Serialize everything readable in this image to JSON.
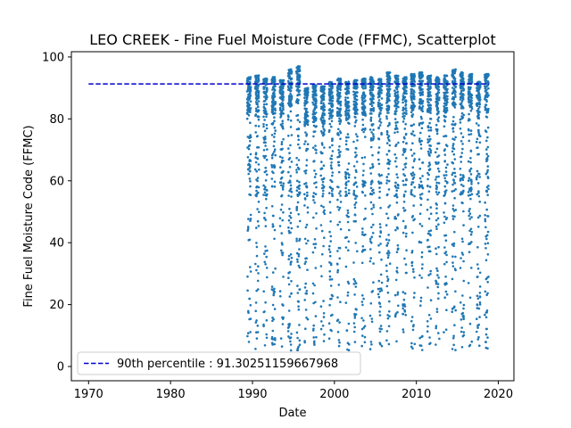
{
  "chart_data": {
    "type": "scatter",
    "title": "LEO CREEK - Fine Fuel Moisture Code (FFMC), Scatterplot",
    "xlabel": "Date",
    "ylabel": "Fine Fuel Moisture Code (FFMC)",
    "xlim": [
      1967.9,
      2021.9
    ],
    "ylim": [
      -4.6,
      101.7
    ],
    "x_ticks": [
      1970,
      1980,
      1990,
      2000,
      2010,
      2020
    ],
    "y_ticks": [
      0,
      20,
      40,
      60,
      80,
      100
    ],
    "grid": false,
    "legend": {
      "placement": "lower-left",
      "entries": [
        "90th percentile : 91.30251159667968"
      ]
    },
    "series": [
      {
        "name": "FFMC",
        "marker": "point",
        "color": "#1f77b4",
        "seasons": [
          1989,
          1990,
          1991,
          1992,
          1993,
          1994,
          1995,
          1996,
          1997,
          1998,
          1999,
          2000,
          2001,
          2002,
          2003,
          2004,
          2005,
          2006,
          2007,
          2008,
          2009,
          2010,
          2011,
          2012,
          2013,
          2014,
          2015,
          2016,
          2017,
          2018
        ],
        "season_start_offset": 0.35,
        "season_length": 0.45,
        "points_per_season": 140,
        "season_max": [
          93.5,
          94,
          93,
          93.5,
          92.5,
          96,
          97,
          90,
          91,
          90.5,
          92,
          93,
          92,
          92.5,
          93,
          93.5,
          93,
          95,
          94,
          93.5,
          94.5,
          95,
          94,
          93.5,
          94,
          96,
          95,
          94.5,
          92,
          94.5
        ]
      },
      {
        "name": "90th percentile : 91.30251159667968",
        "type": "line",
        "style": "dashed",
        "color": "#0000cc",
        "x": [
          1970,
          2018.9
        ],
        "y": [
          91.30251159667968,
          91.30251159667968
        ]
      }
    ]
  }
}
